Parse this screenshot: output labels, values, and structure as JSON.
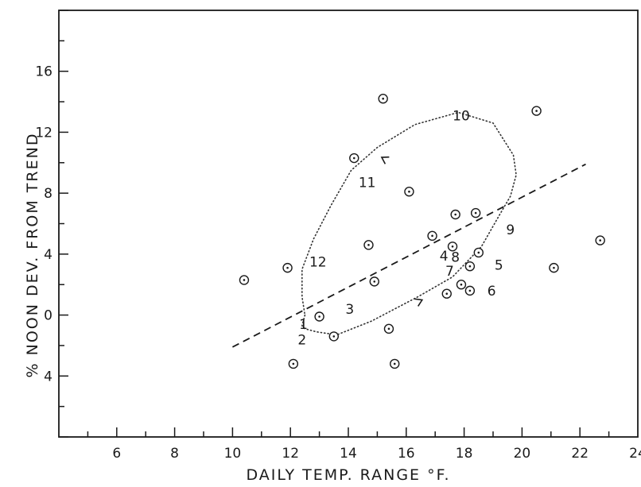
{
  "chart_data": {
    "type": "scatter",
    "title": "",
    "xlabel": "DAILY TEMP. RANGE °F.",
    "ylabel": "% NOON DEV. FROM TREND",
    "xlim": [
      4,
      24
    ],
    "ylim": [
      -8,
      20
    ],
    "x_ticks": [
      6,
      8,
      10,
      12,
      14,
      16,
      18,
      20,
      22,
      24
    ],
    "y_ticks": [
      {
        "value": 16,
        "label": "16"
      },
      {
        "value": 12,
        "label": "12"
      },
      {
        "value": 8,
        "label": "8"
      },
      {
        "value": 4,
        "label": "4"
      },
      {
        "value": 0,
        "label": "0"
      },
      {
        "value": -4,
        "label": "4"
      }
    ],
    "grid": false,
    "points": [
      {
        "x": 10.4,
        "y": 2.3
      },
      {
        "x": 11.9,
        "y": 3.1
      },
      {
        "x": 12.1,
        "y": -3.2
      },
      {
        "x": 13.0,
        "y": -0.1
      },
      {
        "x": 13.5,
        "y": -1.4
      },
      {
        "x": 14.2,
        "y": 10.3
      },
      {
        "x": 14.7,
        "y": 4.6
      },
      {
        "x": 14.9,
        "y": 2.2
      },
      {
        "x": 15.2,
        "y": 14.2
      },
      {
        "x": 15.4,
        "y": -0.9
      },
      {
        "x": 15.6,
        "y": -3.2
      },
      {
        "x": 16.1,
        "y": 8.1
      },
      {
        "x": 16.9,
        "y": 5.2
      },
      {
        "x": 17.4,
        "y": 1.4
      },
      {
        "x": 17.6,
        "y": 4.5
      },
      {
        "x": 17.7,
        "y": 6.6
      },
      {
        "x": 17.9,
        "y": 2.0
      },
      {
        "x": 18.2,
        "y": 3.2
      },
      {
        "x": 18.2,
        "y": 1.6
      },
      {
        "x": 18.4,
        "y": 6.7
      },
      {
        "x": 18.5,
        "y": 4.1
      },
      {
        "x": 20.5,
        "y": 13.4
      },
      {
        "x": 21.1,
        "y": 3.1
      },
      {
        "x": 22.7,
        "y": 4.9
      }
    ],
    "trend_line": {
      "x": [
        10.0,
        22.2
      ],
      "y": [
        -2.1,
        9.9
      ]
    },
    "annual_loop": {
      "x": [
        12.5,
        12.4,
        12.5,
        12.9,
        13.6,
        14.8,
        16.4,
        17.6,
        18.6,
        19.2,
        19.6,
        19.8,
        19.7,
        19.0,
        17.8,
        16.3,
        15.0,
        14.1,
        13.4,
        12.8,
        12.4,
        12.4,
        12.5
      ],
      "y": [
        0.0,
        -0.7,
        -0.9,
        -1.1,
        -1.3,
        -0.4,
        1.2,
        2.5,
        4.5,
        6.5,
        7.8,
        9.2,
        10.5,
        12.6,
        13.3,
        12.5,
        11.0,
        9.5,
        7.2,
        5.0,
        3.0,
        1.2,
        0.0
      ]
    },
    "month_labels": [
      {
        "text": "1",
        "x": 12.45,
        "y": -0.6
      },
      {
        "text": "2",
        "x": 12.4,
        "y": -1.6
      },
      {
        "text": "3",
        "x": 14.05,
        "y": 0.4
      },
      {
        "text": "4",
        "x": 17.3,
        "y": 3.9
      },
      {
        "text": "5",
        "x": 19.2,
        "y": 3.3
      },
      {
        "text": "6",
        "x": 18.95,
        "y": 1.6
      },
      {
        "text": "7",
        "x": 17.5,
        "y": 2.9
      },
      {
        "text": "8",
        "x": 17.7,
        "y": 3.8
      },
      {
        "text": "9",
        "x": 19.6,
        "y": 5.6
      },
      {
        "text": "10",
        "x": 17.9,
        "y": 13.1
      },
      {
        "text": "11",
        "x": 14.65,
        "y": 8.7
      },
      {
        "text": "12",
        "x": 12.95,
        "y": 3.5
      }
    ],
    "direction_arrows": [
      {
        "x": 16.5,
        "y": 0.95,
        "angle": -25
      },
      {
        "x": 15.2,
        "y": 10.3,
        "angle": 210
      }
    ]
  }
}
